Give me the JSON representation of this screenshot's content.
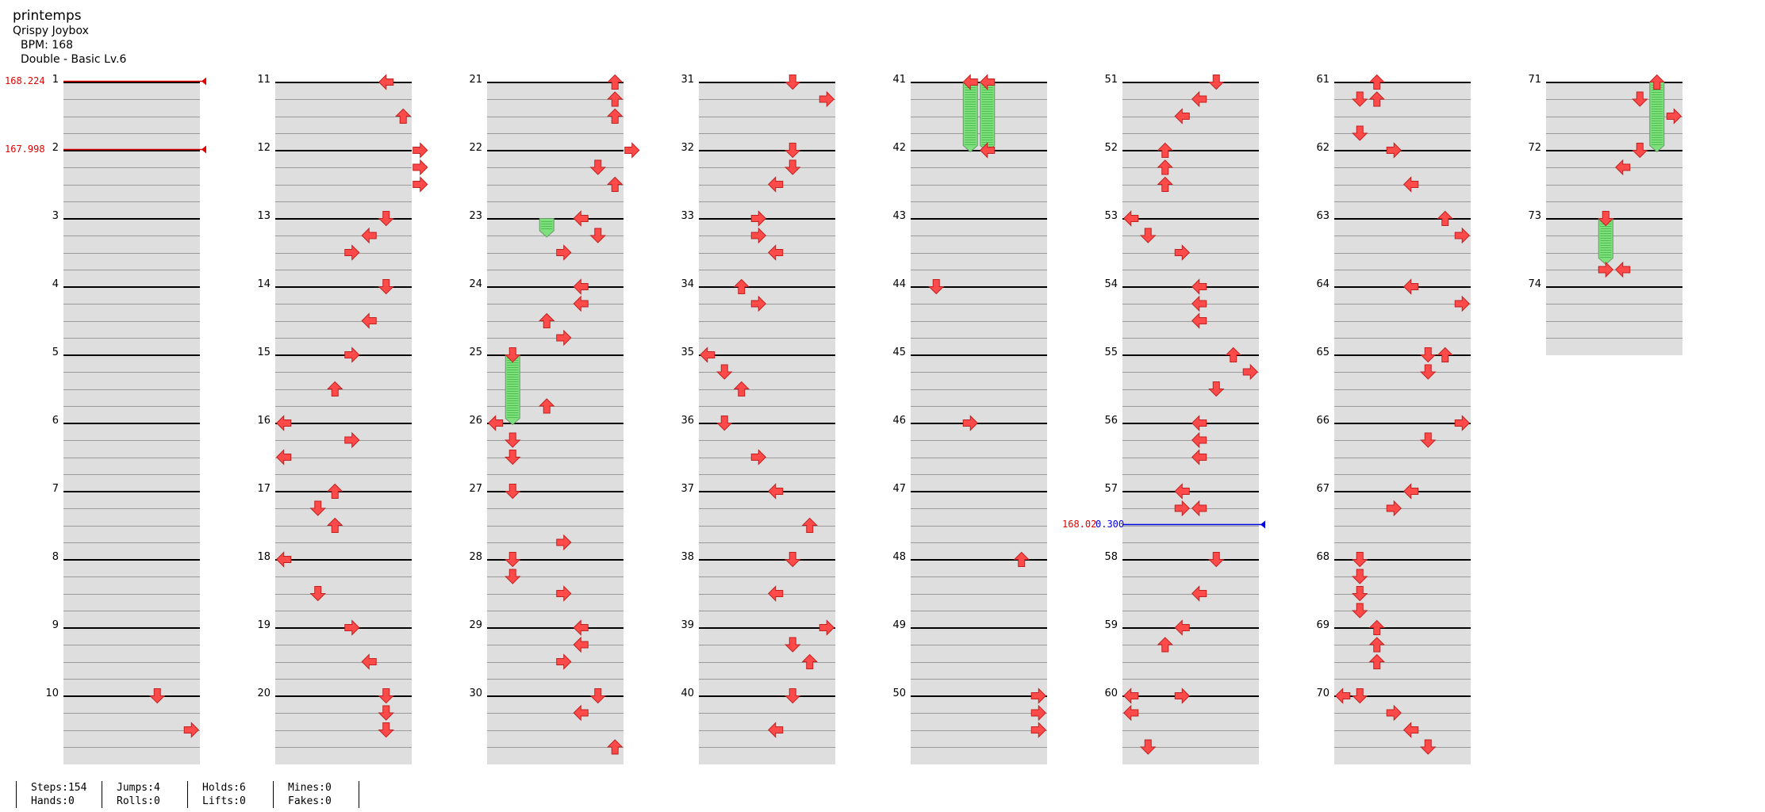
{
  "header": {
    "title": "printemps",
    "artist": "Qrispy Joybox",
    "bpm": "BPM: 168",
    "difficulty": "Double - Basic Lv.6"
  },
  "timing_markers": [
    {
      "label": "168.224",
      "measure": 1,
      "color": "#e00000"
    },
    {
      "label": "167.998",
      "measure": 2,
      "color": "#e00000"
    },
    {
      "label": "168.02",
      "label2": "0.300",
      "measure": 57.5,
      "color": "#0000e0"
    }
  ],
  "stats": {
    "steps": "Steps:154",
    "hands": "Hands:0",
    "jumps": "Jumps:4",
    "rolls": "Rolls:0",
    "holds": "Holds:6",
    "lifts": "Lifts:0",
    "mines": "Mines:0",
    "fakes": "Fakes:0"
  },
  "colors": {
    "arrow": "#ff4a4a",
    "hold": "#7de07d",
    "stripe": "#dedede"
  },
  "measures": [
    "1",
    "2",
    "3",
    "4",
    "5",
    "6",
    "7",
    "8",
    "9",
    "10",
    "11",
    "12",
    "13",
    "14",
    "15",
    "16",
    "17",
    "18",
    "19",
    "20",
    "21",
    "22",
    "23",
    "24",
    "25",
    "26",
    "27",
    "28",
    "29",
    "30",
    "31",
    "32",
    "33",
    "34",
    "35",
    "36",
    "37",
    "38",
    "39",
    "40",
    "41",
    "42",
    "43",
    "44",
    "45",
    "46",
    "47",
    "48",
    "49",
    "50",
    "51",
    "52",
    "53",
    "54",
    "55",
    "56",
    "57",
    "58",
    "59",
    "60",
    "61",
    "62",
    "63",
    "64",
    "65",
    "66",
    "67",
    "68",
    "69",
    "70",
    "71",
    "72",
    "73",
    "74"
  ],
  "notes": [
    [
      10,
      0,
      5,
      "down"
    ],
    [
      10,
      2,
      7,
      "right"
    ],
    [
      11,
      0,
      6,
      "left"
    ],
    [
      11,
      2,
      7,
      "up"
    ],
    [
      12,
      0,
      8,
      "right"
    ],
    [
      12,
      1,
      8,
      "right"
    ],
    [
      12,
      2,
      8,
      "right"
    ],
    [
      13,
      0,
      6,
      "down"
    ],
    [
      13,
      1,
      5,
      "left"
    ],
    [
      13,
      2,
      4,
      "right"
    ],
    [
      14,
      0,
      6,
      "down"
    ],
    [
      14,
      2,
      5,
      "left"
    ],
    [
      15,
      0,
      4,
      "right"
    ],
    [
      15,
      2,
      3,
      "up"
    ],
    [
      16,
      0,
      0,
      "left"
    ],
    [
      16,
      1,
      4,
      "right"
    ],
    [
      16,
      2,
      0,
      "left"
    ],
    [
      17,
      0,
      3,
      "up"
    ],
    [
      17,
      1,
      2,
      "down"
    ],
    [
      17,
      2,
      3,
      "up"
    ],
    [
      18,
      0,
      0,
      "left"
    ],
    [
      18,
      2,
      2,
      "down"
    ],
    [
      19,
      0,
      4,
      "right"
    ],
    [
      19,
      2,
      5,
      "left"
    ],
    [
      20,
      0,
      6,
      "down"
    ],
    [
      20,
      1,
      6,
      "down"
    ],
    [
      20,
      2,
      6,
      "down"
    ],
    [
      21,
      0,
      7,
      "up"
    ],
    [
      21,
      1,
      7,
      "up"
    ],
    [
      21,
      2,
      7,
      "up"
    ],
    [
      22,
      0,
      8,
      "right"
    ],
    [
      22,
      1,
      6,
      "down"
    ],
    [
      22,
      2,
      7,
      "up"
    ],
    [
      23,
      0,
      5,
      "left"
    ],
    [
      23,
      1,
      6,
      "down"
    ],
    [
      23,
      2,
      4,
      "right"
    ],
    [
      24,
      0,
      5,
      "left"
    ],
    [
      24,
      1,
      5,
      "left"
    ],
    [
      24,
      2,
      3,
      "up"
    ],
    [
      24,
      3,
      4,
      "right"
    ],
    [
      25,
      0,
      1,
      "down"
    ],
    [
      25,
      3,
      3,
      "up"
    ],
    [
      26,
      0,
      0,
      "left"
    ],
    [
      26,
      1,
      1,
      "down"
    ],
    [
      26,
      2,
      1,
      "down"
    ],
    [
      27,
      0,
      1,
      "down"
    ],
    [
      27,
      3,
      4,
      "right"
    ],
    [
      28,
      0,
      1,
      "down"
    ],
    [
      28,
      1,
      1,
      "down"
    ],
    [
      28,
      2,
      4,
      "right"
    ],
    [
      29,
      0,
      5,
      "left"
    ],
    [
      29,
      1,
      5,
      "left"
    ],
    [
      29,
      2,
      4,
      "right"
    ],
    [
      30,
      0,
      6,
      "down"
    ],
    [
      30,
      1,
      5,
      "left"
    ],
    [
      30,
      3,
      7,
      "up"
    ],
    [
      31,
      0,
      5,
      "down"
    ],
    [
      31,
      1,
      7,
      "right"
    ],
    [
      32,
      0,
      5,
      "down"
    ],
    [
      32,
      1,
      5,
      "down"
    ],
    [
      32,
      2,
      4,
      "left"
    ],
    [
      33,
      0,
      3,
      "right"
    ],
    [
      33,
      1,
      3,
      "right"
    ],
    [
      33,
      2,
      4,
      "left"
    ],
    [
      34,
      0,
      2,
      "up"
    ],
    [
      34,
      1,
      3,
      "right"
    ],
    [
      35,
      0,
      0,
      "left"
    ],
    [
      35,
      1,
      1,
      "down"
    ],
    [
      35,
      2,
      2,
      "up"
    ],
    [
      36,
      0,
      1,
      "down"
    ],
    [
      36,
      2,
      3,
      "right"
    ],
    [
      37,
      0,
      4,
      "left"
    ],
    [
      37,
      2,
      6,
      "up"
    ],
    [
      38,
      0,
      5,
      "down"
    ],
    [
      38,
      2,
      4,
      "left"
    ],
    [
      39,
      0,
      7,
      "right"
    ],
    [
      39,
      1,
      5,
      "down"
    ],
    [
      39,
      2,
      6,
      "up"
    ],
    [
      40,
      0,
      5,
      "down"
    ],
    [
      40,
      2,
      4,
      "left"
    ],
    [
      41,
      0,
      3,
      "left"
    ],
    [
      41,
      0,
      4,
      "left"
    ],
    [
      42,
      0,
      4,
      "left"
    ],
    [
      44,
      0,
      1,
      "down"
    ],
    [
      46,
      0,
      3,
      "right"
    ],
    [
      48,
      0,
      6,
      "up"
    ],
    [
      50,
      0,
      7,
      "right"
    ],
    [
      50,
      1,
      7,
      "right"
    ],
    [
      50,
      2,
      7,
      "right"
    ],
    [
      51,
      0,
      5,
      "down"
    ],
    [
      51,
      1,
      4,
      "left"
    ],
    [
      51,
      2,
      3,
      "left"
    ],
    [
      52,
      0,
      2,
      "up"
    ],
    [
      52,
      1,
      2,
      "up"
    ],
    [
      52,
      2,
      2,
      "up"
    ],
    [
      53,
      0,
      0,
      "left"
    ],
    [
      53,
      1,
      1,
      "down"
    ],
    [
      53,
      2,
      3,
      "right"
    ],
    [
      54,
      0,
      4,
      "left"
    ],
    [
      54,
      1,
      4,
      "left"
    ],
    [
      54,
      2,
      4,
      "left"
    ],
    [
      55,
      0,
      6,
      "up"
    ],
    [
      55,
      1,
      7,
      "right"
    ],
    [
      55,
      2,
      5,
      "down"
    ],
    [
      56,
      0,
      4,
      "left"
    ],
    [
      56,
      1,
      4,
      "left"
    ],
    [
      56,
      2,
      4,
      "left"
    ],
    [
      57,
      0,
      3,
      "left"
    ],
    [
      57,
      1,
      3,
      "right"
    ],
    [
      57,
      1,
      4,
      "left"
    ],
    [
      58,
      0,
      5,
      "down"
    ],
    [
      58,
      2,
      4,
      "left"
    ],
    [
      59,
      0,
      3,
      "left"
    ],
    [
      59,
      1,
      2,
      "up"
    ],
    [
      60,
      0,
      0,
      "left"
    ],
    [
      60,
      0,
      3,
      "right"
    ],
    [
      60,
      1,
      0,
      "left"
    ],
    [
      60,
      3,
      1,
      "down"
    ],
    [
      61,
      0,
      2,
      "up"
    ],
    [
      61,
      1,
      1,
      "down"
    ],
    [
      61,
      1,
      2,
      "up"
    ],
    [
      61,
      3,
      1,
      "down"
    ],
    [
      62,
      0,
      3,
      "right"
    ],
    [
      62,
      2,
      4,
      "left"
    ],
    [
      63,
      0,
      6,
      "up"
    ],
    [
      63,
      1,
      7,
      "right"
    ],
    [
      64,
      0,
      4,
      "left"
    ],
    [
      64,
      1,
      7,
      "right"
    ],
    [
      65,
      0,
      5,
      "down"
    ],
    [
      65,
      0,
      6,
      "up"
    ],
    [
      65,
      1,
      5,
      "down"
    ],
    [
      66,
      0,
      7,
      "right"
    ],
    [
      66,
      1,
      5,
      "down"
    ],
    [
      67,
      0,
      4,
      "left"
    ],
    [
      67,
      1,
      3,
      "right"
    ],
    [
      68,
      0,
      1,
      "down"
    ],
    [
      68,
      1,
      1,
      "down"
    ],
    [
      68,
      2,
      1,
      "down"
    ],
    [
      68,
      3,
      1,
      "down"
    ],
    [
      69,
      0,
      2,
      "up"
    ],
    [
      69,
      1,
      2,
      "up"
    ],
    [
      69,
      2,
      2,
      "up"
    ],
    [
      70,
      0,
      0,
      "left"
    ],
    [
      70,
      0,
      1,
      "down"
    ],
    [
      70,
      1,
      3,
      "right"
    ],
    [
      70,
      2,
      4,
      "left"
    ],
    [
      70,
      3,
      5,
      "down"
    ],
    [
      71,
      0,
      6,
      "up"
    ],
    [
      71,
      1,
      5,
      "down"
    ],
    [
      71,
      2,
      7,
      "right"
    ],
    [
      72,
      0,
      5,
      "down"
    ],
    [
      72,
      1,
      4,
      "left"
    ],
    [
      73,
      0,
      3,
      "down"
    ],
    [
      73,
      3,
      3,
      "right"
    ],
    [
      73,
      3,
      4,
      "left"
    ]
  ],
  "holds": [
    [
      23,
      0.0,
      23,
      1.0,
      3
    ],
    [
      25,
      0.0,
      26,
      0.0,
      1
    ],
    [
      41,
      0.0,
      42,
      0.0,
      3
    ],
    [
      41,
      0.0,
      42,
      0.0,
      4
    ],
    [
      71,
      0.0,
      72,
      0.0,
      6
    ],
    [
      73,
      0.0,
      73,
      2.6,
      3
    ]
  ]
}
